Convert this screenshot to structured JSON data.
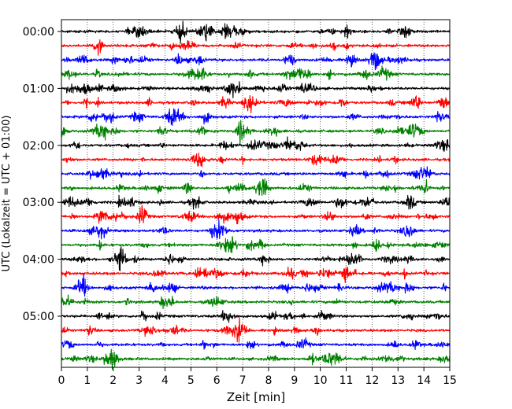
{
  "chart_data": {
    "type": "line",
    "title": "",
    "xlabel": "Zeit  [min]",
    "ylabel": "UTC (Lokalzeit = UTC + 01:00)",
    "xlim": [
      0,
      15
    ],
    "x_ticks": [
      0,
      1,
      2,
      3,
      4,
      5,
      6,
      7,
      8,
      9,
      10,
      11,
      12,
      13,
      14,
      15
    ],
    "y_tick_labels": [
      "00:00",
      "01:00",
      "02:00",
      "03:00",
      "04:00",
      "05:00"
    ],
    "trace_interval_minutes": 15,
    "trace_count": 24,
    "trace_start_times": [
      "00:00",
      "00:15",
      "00:30",
      "00:45",
      "01:00",
      "01:15",
      "01:30",
      "01:45",
      "02:00",
      "02:15",
      "02:30",
      "02:45",
      "03:00",
      "03:15",
      "03:30",
      "03:45",
      "04:00",
      "04:15",
      "04:30",
      "04:45",
      "05:00",
      "05:15",
      "05:30",
      "05:45"
    ],
    "trace_colors": [
      "#000000",
      "#ff0000",
      "#0000ff",
      "#008000"
    ],
    "grid": "vertical dotted at each minute",
    "legend": "none"
  }
}
